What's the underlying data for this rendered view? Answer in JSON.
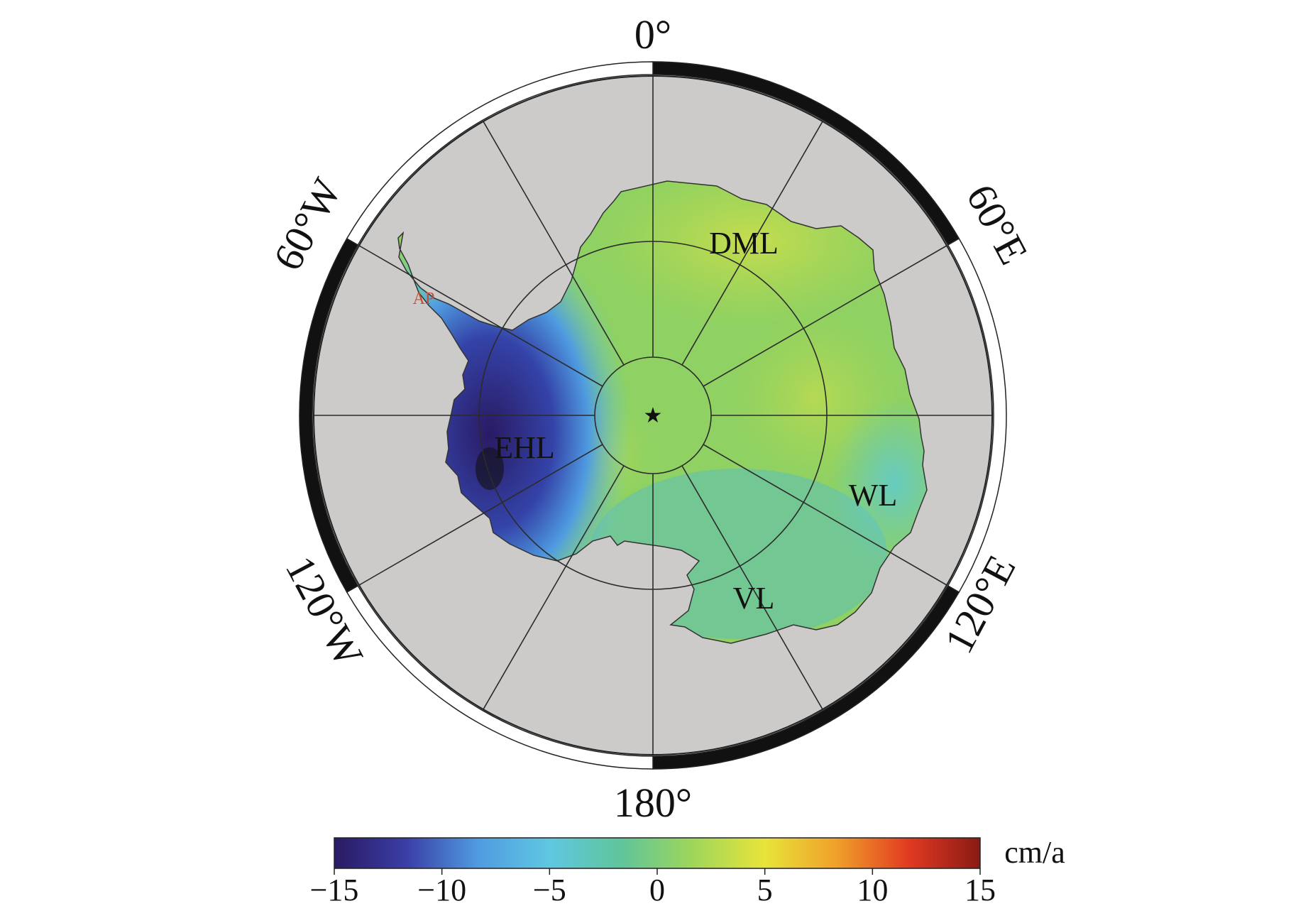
{
  "map": {
    "longitude_labels": {
      "north": "0°",
      "south": "180°",
      "west_upper": "60°W",
      "west_lower": "120°W",
      "east_upper": "60°E",
      "east_lower": "120°E"
    },
    "regions": {
      "dml": "DML",
      "ehl": "EHL",
      "wl": "WL",
      "vl": "VL",
      "ap": "AP"
    },
    "colors": {
      "ocean": "#cdcaca",
      "frame_dark": "#111111",
      "frame_light": "#ffffff",
      "graticule": "#2b2b2b"
    }
  },
  "colorbar": {
    "unit": "cm/a",
    "min": -15,
    "max": 15,
    "ticks": [
      "-15",
      "-10",
      "-5",
      "0",
      "5",
      "10",
      "15"
    ],
    "stops": [
      "#2a1a63",
      "#3a3ea6",
      "#4f9be0",
      "#5fc7e2",
      "#5fc59a",
      "#9fd65a",
      "#e8e43a",
      "#f0a02a",
      "#e23a22",
      "#8a1a14"
    ]
  }
}
